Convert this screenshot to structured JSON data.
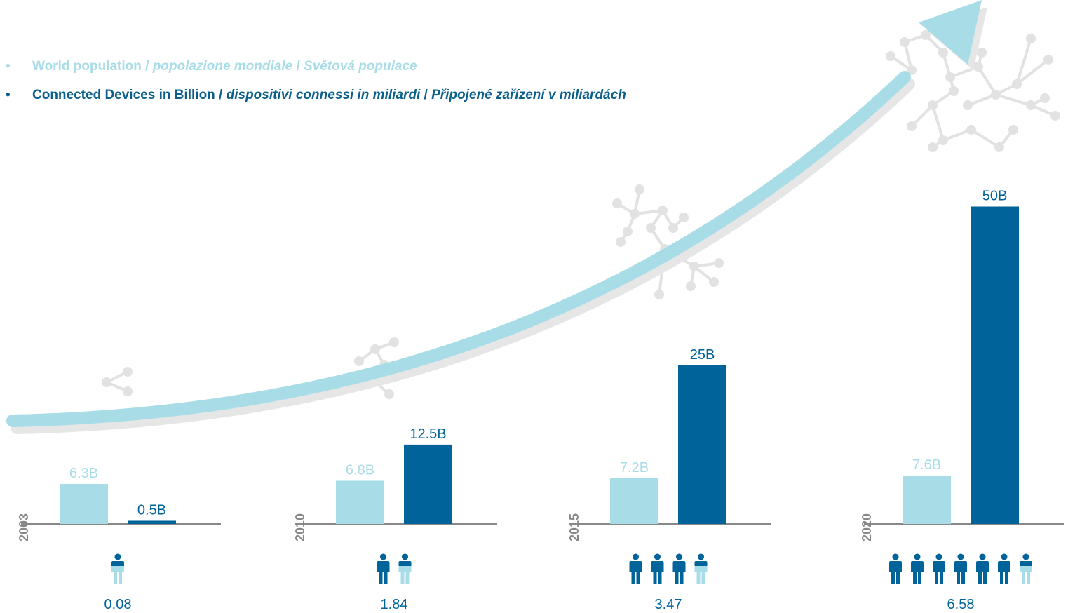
{
  "legend": {
    "population": {
      "bullet": "•",
      "en": "World population",
      "sep1": " / ",
      "it": "popolazione mondiale",
      "sep2": " / ",
      "cz": "Světová populace",
      "color": "#a8dde8"
    },
    "devices": {
      "bullet": "•",
      "en": "Connected Devices in Billion",
      "sep1": " / ",
      "it": "dispositivi connessi in miliardi",
      "sep2": " / ",
      "cz": "Připojené zařízení v miliardách",
      "color": "#00639a"
    }
  },
  "chart_data": {
    "type": "bar",
    "categories": [
      "2003",
      "2010",
      "2015",
      "2020"
    ],
    "series": [
      {
        "values": [
          6.3,
          6.8,
          7.2,
          7.6
        ],
        "labels": [
          "6.3B",
          "6.8B",
          "7.2B",
          "7.6B"
        ],
        "color": "#a8dde8"
      },
      {
        "values": [
          0.5,
          12.5,
          25,
          50
        ],
        "labels": [
          "0.5B",
          "12.5B",
          "25B",
          "50B"
        ],
        "color": "#00639a"
      }
    ],
    "devices_per_person": [
      0.08,
      1.84,
      3.47,
      6.58
    ],
    "devices_per_person_labels": [
      "0.08",
      "1.84",
      "3.47",
      "6.58"
    ],
    "grid": false,
    "legend_position": "top-left",
    "decor": {
      "arrow_color": "#a8dde8",
      "shadow_color": "#e6e6e6",
      "network_color": "#e2e2e2",
      "axis_color": "#888888"
    }
  }
}
